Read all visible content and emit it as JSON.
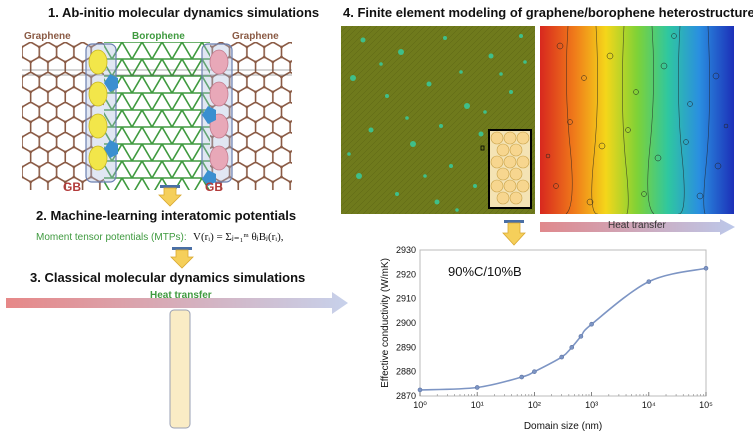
{
  "panel1": {
    "title": "1. Ab-initio molecular dynamics simulations",
    "label_left": "Graphene",
    "label_mid": "Borophene",
    "label_right": "Graphene",
    "gb_left": "GB",
    "gb_right": "GB"
  },
  "panel2": {
    "title": "2. Machine-learning interatomic potentials",
    "subtitle": "Moment tensor potentials (MTPs):",
    "equation": "V(rᵢ) = Σⱼ₌₁ᵐ θⱼBⱼ(rᵢ),"
  },
  "panel3": {
    "title": "3. Classical molecular dynamics simulations",
    "heat_label": "Heat transfer"
  },
  "panel4": {
    "title": "4. Finite element modeling of graphene/borophene heterostructures",
    "heat_label": "Heat transfer"
  },
  "colors": {
    "graphene": "#8a5a44",
    "borophene": "#3f9a3f",
    "gb_yellow": "#f2e64a",
    "gb_pink": "#e8a8b8",
    "gb_blue": "#3a8fd0",
    "fem_green": "#6f7a1c",
    "accent_arrow": "#f5cf5a",
    "curve": "#7d95c4"
  },
  "chart_data": {
    "type": "line",
    "title": "90%C/10%B",
    "xlabel": "Domain size (nm)",
    "ylabel": "Effective conductivity (W/mK)",
    "xscale": "log",
    "xlim": [
      1,
      100000
    ],
    "ylim": [
      2870,
      2930
    ],
    "x_ticks": [
      "10⁰",
      "10¹",
      "10²",
      "10³",
      "10⁴",
      "10⁵"
    ],
    "y_ticks": [
      2870,
      2880,
      2890,
      2900,
      2910,
      2920,
      2930
    ],
    "series": [
      {
        "name": "90%C/10%B",
        "x": [
          1,
          10,
          60,
          100,
          300,
          450,
          650,
          1000,
          10000,
          100000
        ],
        "y": [
          2872.5,
          2873.5,
          2877.8,
          2880,
          2886,
          2890,
          2894.5,
          2899.5,
          2917,
          2922.5
        ]
      }
    ]
  }
}
